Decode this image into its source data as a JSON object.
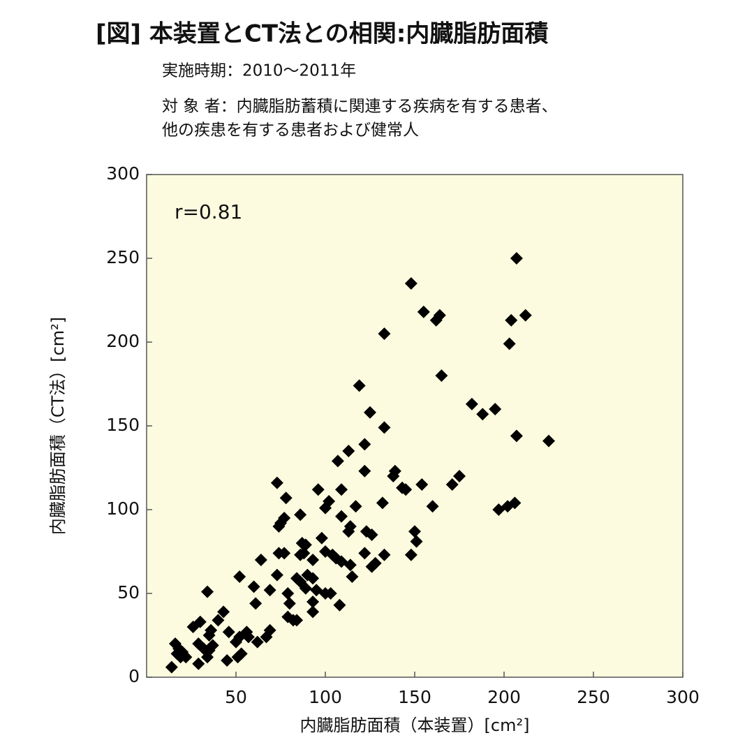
{
  "chart_data": {
    "type": "scatter",
    "title": "[図] 本装置とCT法との相関:内臓脂肪面積",
    "subtitle": [
      "実施時期：2010〜2011年",
      "対 象 者：内臓脂肪蓄積に関連する疾病を有する患者、",
      "他の疾患を有する患者および健常人"
    ],
    "annotation": "r=0.81",
    "x_label": "内臓脂肪面積（本装置）[cm²]",
    "y_label": "内臓脂肪面積（CT法）[cm²]",
    "xlim": [
      0,
      300
    ],
    "ylim": [
      0,
      300
    ],
    "xticks": [
      50,
      100,
      150,
      200,
      250,
      300
    ],
    "yticks": [
      0,
      50,
      100,
      150,
      200,
      250,
      300
    ],
    "color": "#000000",
    "plot_background": "#fdfbdf",
    "x": [
      207,
      148,
      155,
      162,
      164,
      212,
      204,
      203,
      133,
      165,
      119,
      182,
      188,
      195,
      125,
      133,
      207,
      225,
      122,
      113,
      107,
      139,
      138,
      122,
      154,
      175,
      171,
      143,
      145,
      73,
      96,
      109,
      78,
      160,
      132,
      117,
      102,
      100,
      197,
      202,
      206,
      86,
      109,
      77,
      74,
      75,
      114,
      113,
      123,
      126,
      150,
      98,
      151,
      87,
      89,
      74,
      77,
      86,
      88,
      100,
      104,
      106,
      122,
      133,
      148,
      109,
      114,
      126,
      128,
      93,
      64,
      115,
      52,
      73,
      84,
      86,
      93,
      90,
      60,
      69,
      89,
      95,
      100,
      103,
      79,
      80,
      108,
      93,
      93,
      34,
      61,
      79,
      82,
      84,
      43,
      40,
      30,
      26,
      36,
      35,
      46,
      56,
      57,
      69,
      67,
      62,
      52,
      50,
      29,
      32,
      37,
      35,
      16,
      18,
      20,
      21,
      17,
      19,
      22,
      34,
      51,
      53,
      45,
      29,
      14
    ],
    "y": [
      250,
      235,
      218,
      213,
      216,
      216,
      213,
      199,
      205,
      180,
      174,
      163,
      157,
      160,
      158,
      149,
      144,
      141,
      139,
      135,
      129,
      123,
      120,
      123,
      115,
      120,
      115,
      113,
      112,
      116,
      112,
      112,
      107,
      102,
      104,
      102,
      105,
      101,
      100,
      102,
      104,
      97,
      96,
      95,
      90,
      92,
      90,
      87,
      87,
      85,
      87,
      83,
      81,
      80,
      79,
      74,
      74,
      73,
      74,
      75,
      73,
      71,
      74,
      73,
      73,
      69,
      67,
      66,
      68,
      70,
      70,
      60,
      60,
      61,
      59,
      57,
      59,
      61,
      54,
      52,
      53,
      52,
      50,
      50,
      50,
      44,
      43,
      45,
      39,
      51,
      44,
      36,
      34,
      34,
      39,
      34,
      33,
      30,
      28,
      25,
      27,
      27,
      24,
      28,
      24,
      21,
      24,
      21,
      20,
      17,
      19,
      16,
      20,
      17,
      15,
      13,
      14,
      12,
      12,
      12,
      12,
      14,
      10,
      8,
      6
    ]
  }
}
